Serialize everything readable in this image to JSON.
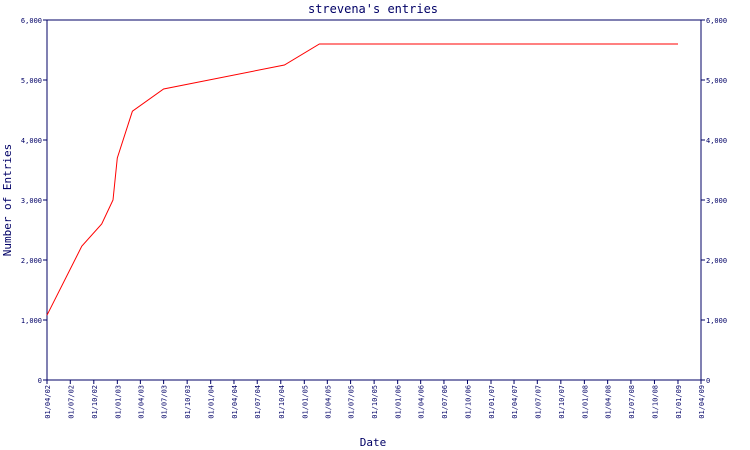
{
  "chart_data": {
    "type": "line",
    "title": "strevena's entries",
    "xlabel": "Date",
    "ylabel": "Number of Entries",
    "ylim": [
      0,
      6000
    ],
    "xlim": [
      "2002-04-01",
      "2009-04-01"
    ],
    "yticks": [
      0,
      1000,
      2000,
      3000,
      4000,
      5000,
      6000
    ],
    "ytick_labels": [
      "0",
      "1,000",
      "2,000",
      "3,000",
      "4,000",
      "5,000",
      "6,000"
    ],
    "xtick_labels": [
      "01/04/02",
      "01/07/02",
      "01/10/02",
      "01/01/03",
      "01/04/03",
      "01/07/03",
      "01/10/03",
      "01/01/04",
      "01/04/04",
      "01/07/04",
      "01/10/04",
      "01/01/05",
      "01/04/05",
      "01/07/05",
      "01/10/05",
      "01/01/06",
      "01/04/06",
      "01/07/06",
      "01/10/06",
      "01/01/07",
      "01/04/07",
      "01/07/07",
      "01/10/07",
      "01/01/08",
      "01/04/08",
      "01/07/08",
      "01/10/08",
      "01/01/09",
      "01/04/09"
    ],
    "xtick_dates": [
      "2002-04-01",
      "2002-07-01",
      "2002-10-01",
      "2003-01-01",
      "2003-04-01",
      "2003-07-01",
      "2003-10-01",
      "2004-01-01",
      "2004-04-01",
      "2004-07-01",
      "2004-10-01",
      "2005-01-01",
      "2005-04-01",
      "2005-07-01",
      "2005-10-01",
      "2006-01-01",
      "2006-04-01",
      "2006-07-01",
      "2006-10-01",
      "2007-01-01",
      "2007-04-01",
      "2007-07-01",
      "2007-10-01",
      "2008-01-01",
      "2008-04-01",
      "2008-07-01",
      "2008-10-01",
      "2009-01-01",
      "2009-04-01"
    ],
    "grid": false,
    "line_color": "#ff0000",
    "axis_color": "#000066",
    "series": [
      {
        "x": [
          "2002-04-01",
          "2002-08-15",
          "2002-11-01",
          "2002-12-15",
          "2003-01-01",
          "2003-03-01",
          "2003-07-01",
          "2004-10-15",
          "2005-03-01",
          "2009-01-01"
        ],
        "values": [
          1080,
          2230,
          2600,
          3000,
          3700,
          4480,
          4850,
          5250,
          5600,
          5600
        ]
      }
    ]
  }
}
